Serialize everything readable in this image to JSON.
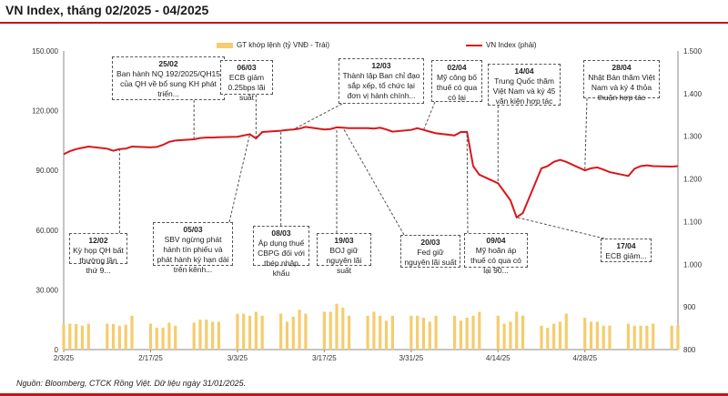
{
  "title": "VN Index, tháng 02/2025 - 04/2025",
  "source": "Nguồn: Bloomberg, CTCK Rồng Việt. Dữ liệu ngày 31/01/2025.",
  "colors": {
    "bar": "#f5cc6e",
    "line": "#d9161c",
    "accent": "#c0161c"
  },
  "chart_data": {
    "type": "bar+line",
    "x_tick_labels": [
      "2/3/25",
      "2/17/25",
      "3/3/25",
      "3/17/25",
      "3/31/25",
      "4/14/25",
      "4/28/25"
    ],
    "left_axis": {
      "ticks": [
        "0",
        "30.000",
        "60.000",
        "90.000",
        "120.000",
        "150.000"
      ],
      "range": [
        0,
        150000
      ]
    },
    "right_axis": {
      "ticks": [
        "800",
        "900",
        "1.000",
        "1.100",
        "1.200",
        "1.300",
        "1.400",
        "1.500"
      ],
      "range": [
        800,
        1500
      ]
    },
    "legend": {
      "bar": "GT khớp lệnh (tỷ VNĐ - Trái)",
      "line": "VN Index (phải)"
    },
    "series": [
      {
        "name": "GT khớp lệnh (tỷ VNĐ - Trái)",
        "kind": "bar",
        "axis": "left",
        "points": [
          [
            "2025-02-03",
            12500
          ],
          [
            "2025-02-04",
            13000
          ],
          [
            "2025-02-05",
            12800
          ],
          [
            "2025-02-06",
            12000
          ],
          [
            "2025-02-07",
            13000
          ],
          [
            "2025-02-10",
            13000
          ],
          [
            "2025-02-11",
            12800
          ],
          [
            "2025-02-12",
            12000
          ],
          [
            "2025-02-13",
            12500
          ],
          [
            "2025-02-14",
            17000
          ],
          [
            "2025-02-17",
            13000
          ],
          [
            "2025-02-18",
            11000
          ],
          [
            "2025-02-19",
            11000
          ],
          [
            "2025-02-20",
            13500
          ],
          [
            "2025-02-21",
            12000
          ],
          [
            "2025-02-24",
            13500
          ],
          [
            "2025-02-25",
            15000
          ],
          [
            "2025-02-26",
            15000
          ],
          [
            "2025-02-27",
            14000
          ],
          [
            "2025-02-28",
            14000
          ],
          [
            "2025-03-03",
            18000
          ],
          [
            "2025-03-04",
            18000
          ],
          [
            "2025-03-05",
            17000
          ],
          [
            "2025-03-06",
            19000
          ],
          [
            "2025-03-07",
            17000
          ],
          [
            "2025-03-10",
            18000
          ],
          [
            "2025-03-11",
            14000
          ],
          [
            "2025-03-12",
            16500
          ],
          [
            "2025-03-13",
            20000
          ],
          [
            "2025-03-14",
            18000
          ],
          [
            "2025-03-17",
            19000
          ],
          [
            "2025-03-18",
            19000
          ],
          [
            "2025-03-19",
            23000
          ],
          [
            "2025-03-20",
            21000
          ],
          [
            "2025-03-21",
            17000
          ],
          [
            "2025-03-24",
            17000
          ],
          [
            "2025-03-25",
            19000
          ],
          [
            "2025-03-26",
            17000
          ],
          [
            "2025-03-27",
            14500
          ],
          [
            "2025-03-28",
            17000
          ],
          [
            "2025-03-31",
            17000
          ],
          [
            "2025-04-01",
            17000
          ],
          [
            "2025-04-02",
            16000
          ],
          [
            "2025-04-03",
            14000
          ],
          [
            "2025-04-04",
            17000
          ],
          [
            "2025-04-07",
            17000
          ],
          [
            "2025-04-08",
            14500
          ],
          [
            "2025-04-09",
            16000
          ],
          [
            "2025-04-10",
            17000
          ],
          [
            "2025-04-11",
            19000
          ],
          [
            "2025-04-14",
            17000
          ],
          [
            "2025-04-15",
            13000
          ],
          [
            "2025-04-16",
            14000
          ],
          [
            "2025-04-17",
            19000
          ],
          [
            "2025-04-18",
            17000
          ],
          [
            "2025-04-21",
            12000
          ],
          [
            "2025-04-22",
            11000
          ],
          [
            "2025-04-23",
            13000
          ],
          [
            "2025-04-24",
            14000
          ],
          [
            "2025-04-25",
            18000
          ],
          [
            "2025-04-28",
            16000
          ],
          [
            "2025-04-29",
            14000
          ],
          [
            "2025-04-30",
            14000
          ],
          [
            "2025-05-01",
            12000
          ],
          [
            "2025-05-02",
            12000
          ],
          [
            "2025-05-05",
            13000
          ],
          [
            "2025-05-06",
            12000
          ],
          [
            "2025-05-07",
            12000
          ],
          [
            "2025-05-08",
            12000
          ],
          [
            "2025-05-09",
            13000
          ],
          [
            "2025-05-12",
            12000
          ],
          [
            "2025-05-13",
            12000
          ]
        ]
      },
      {
        "name": "VN Index (phải)",
        "kind": "line",
        "axis": "right",
        "points": [
          [
            "2025-02-03",
            1258
          ],
          [
            "2025-02-04",
            1265
          ],
          [
            "2025-02-05",
            1270
          ],
          [
            "2025-02-06",
            1273
          ],
          [
            "2025-02-07",
            1276
          ],
          [
            "2025-02-10",
            1271
          ],
          [
            "2025-02-11",
            1266
          ],
          [
            "2025-02-12",
            1270
          ],
          [
            "2025-02-13",
            1271
          ],
          [
            "2025-02-14",
            1276
          ],
          [
            "2025-02-17",
            1274
          ],
          [
            "2025-02-18",
            1275
          ],
          [
            "2025-02-19",
            1280
          ],
          [
            "2025-02-20",
            1287
          ],
          [
            "2025-02-21",
            1290
          ],
          [
            "2025-02-24",
            1293
          ],
          [
            "2025-02-25",
            1296
          ],
          [
            "2025-02-26",
            1297
          ],
          [
            "2025-02-27",
            1297
          ],
          [
            "2025-02-28",
            1298
          ],
          [
            "2025-03-03",
            1299
          ],
          [
            "2025-03-04",
            1302
          ],
          [
            "2025-03-05",
            1305
          ],
          [
            "2025-03-06",
            1295
          ],
          [
            "2025-03-07",
            1310
          ],
          [
            "2025-03-10",
            1313
          ],
          [
            "2025-03-11",
            1315
          ],
          [
            "2025-03-12",
            1316
          ],
          [
            "2025-03-13",
            1318
          ],
          [
            "2025-03-14",
            1322
          ],
          [
            "2025-03-17",
            1316
          ],
          [
            "2025-03-18",
            1317
          ],
          [
            "2025-03-19",
            1321
          ],
          [
            "2025-03-20",
            1320
          ],
          [
            "2025-03-21",
            1319
          ],
          [
            "2025-03-24",
            1319
          ],
          [
            "2025-03-25",
            1318
          ],
          [
            "2025-03-26",
            1320
          ],
          [
            "2025-03-27",
            1316
          ],
          [
            "2025-03-28",
            1311
          ],
          [
            "2025-03-31",
            1315
          ],
          [
            "2025-04-01",
            1319
          ],
          [
            "2025-04-02",
            1315
          ],
          [
            "2025-04-03",
            1311
          ],
          [
            "2025-04-04",
            1307
          ],
          [
            "2025-04-07",
            1302
          ],
          [
            "2025-04-08",
            1310
          ],
          [
            "2025-04-09",
            1310
          ],
          [
            "2025-04-10",
            1230
          ],
          [
            "2025-04-11",
            1210
          ],
          [
            "2025-04-14",
            1190
          ],
          [
            "2025-04-15",
            1170
          ],
          [
            "2025-04-16",
            1150
          ],
          [
            "2025-04-17",
            1110
          ],
          [
            "2025-04-18",
            1120
          ],
          [
            "2025-04-21",
            1225
          ],
          [
            "2025-04-22",
            1230
          ],
          [
            "2025-04-23",
            1240
          ],
          [
            "2025-04-24",
            1245
          ],
          [
            "2025-04-25",
            1240
          ],
          [
            "2025-04-28",
            1220
          ],
          [
            "2025-04-29",
            1225
          ],
          [
            "2025-04-30",
            1227
          ],
          [
            "2025-05-01",
            1222
          ],
          [
            "2025-05-02",
            1216
          ],
          [
            "2025-05-05",
            1207
          ],
          [
            "2025-05-06",
            1224
          ],
          [
            "2025-05-07",
            1230
          ],
          [
            "2025-05-08",
            1232
          ],
          [
            "2025-05-09",
            1230
          ],
          [
            "2025-05-12",
            1229
          ],
          [
            "2025-05-13",
            1230
          ]
        ]
      }
    ],
    "annotations": [
      {
        "date": "25/02",
        "text": "Ban hành NQ 192/2025/QH15 của QH về bổ sung KH phát triển...",
        "anchor": "2025-02-24"
      },
      {
        "date": "06/03",
        "text": "ECB giảm 0.25bps lãi suất",
        "anchor": "2025-03-06"
      },
      {
        "date": "12/03",
        "text": "Thành lập Ban chỉ đạo sắp xếp, tổ chức lại đơn vị hành chính...",
        "anchor": "2025-03-12"
      },
      {
        "date": "02/04",
        "text": "Mỹ công bố thuế có qua có lại",
        "anchor": "2025-04-02"
      },
      {
        "date": "14/04",
        "text": "Trung Quốc thăm Việt Nam và ký 45 văn kiện hợp tác",
        "anchor": "2025-04-14"
      },
      {
        "date": "28/04",
        "text": "Nhật Bản thăm Việt Nam và ký 4 thỏa thuận hợp tác",
        "anchor": "2025-04-28"
      },
      {
        "date": "12/02",
        "text": "Kỳ họp QH bất thường lần thứ 9...",
        "anchor": "2025-02-12"
      },
      {
        "date": "05/03",
        "text": "SBV ngừng phát hành tín phiếu và phát hành kỳ hạn dài trên kênh...",
        "anchor": "2025-03-05"
      },
      {
        "date": "08/03",
        "text": "Áp dụng thuế CBPG đối với thép nhập khẩu",
        "anchor": "2025-03-10"
      },
      {
        "date": "19/03",
        "text": "BOJ giữ nguyên lãi suất",
        "anchor": "2025-03-19"
      },
      {
        "date": "20/03",
        "text": "Fed giữ nguyên lãi suất",
        "anchor": "2025-03-20"
      },
      {
        "date": "09/04",
        "text": "Mỹ hoãn áp thuế có qua có lại 90...",
        "anchor": "2025-04-09"
      },
      {
        "date": "17/04",
        "text": "ECB giảm...",
        "anchor": "2025-04-17"
      }
    ]
  }
}
